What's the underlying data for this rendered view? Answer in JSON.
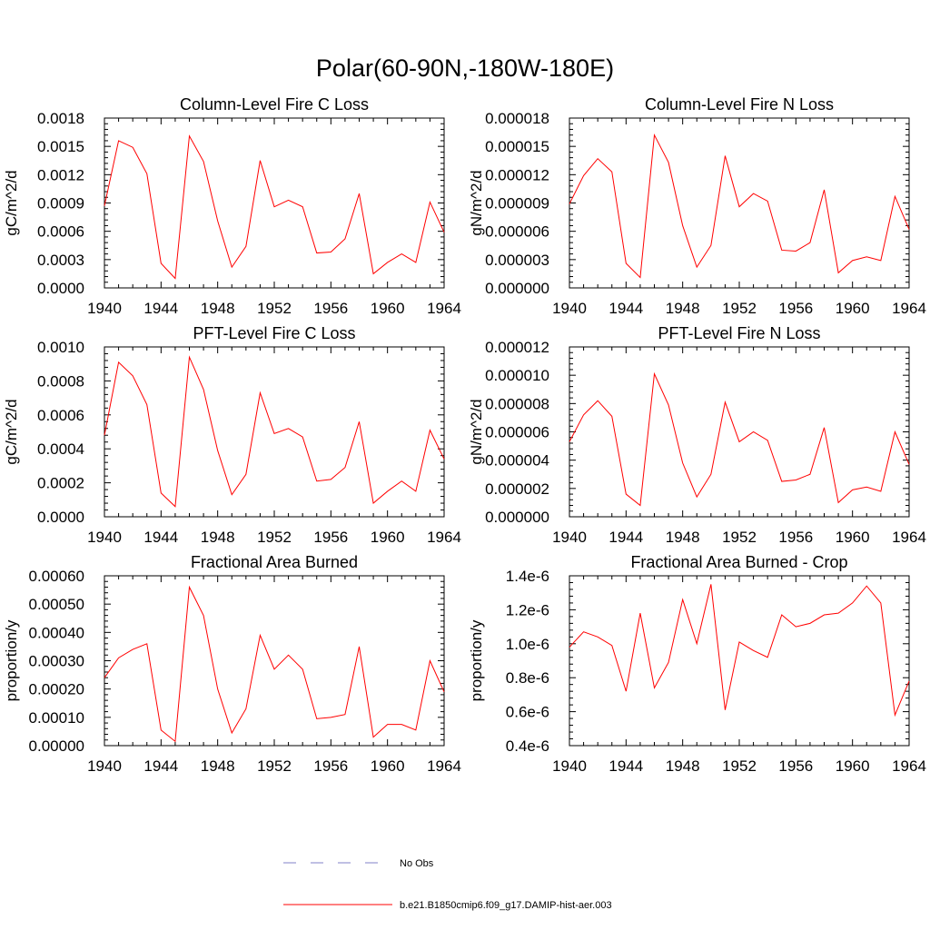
{
  "title": "Polar(60-90N,-180W-180E)",
  "colors": {
    "series": "#ff0000",
    "obs": "#8080c8",
    "axis": "#000000"
  },
  "legend": {
    "position": "bottom",
    "entries": [
      {
        "label": "No Obs",
        "style": "dashed",
        "color": "#8080c8"
      },
      {
        "label": "b.e21.B1850cmip6.f09_g17.DAMIP-hist-aer.003",
        "style": "solid",
        "color": "#ff0000"
      }
    ]
  },
  "chart_data": [
    {
      "type": "line",
      "title": "Column-Level Fire C Loss",
      "xlabel": "",
      "ylabel": "gC/m^2/d",
      "xlim": [
        1940,
        1964
      ],
      "ylim": [
        0,
        0.0018
      ],
      "xticks": [
        "1940",
        "1944",
        "1948",
        "1952",
        "1956",
        "1960",
        "1964"
      ],
      "yticks": [
        "0.0000",
        "0.0003",
        "0.0006",
        "0.0009",
        "0.0012",
        "0.0015",
        "0.0018"
      ],
      "x": [
        1940,
        1941,
        1942,
        1943,
        1944,
        1945,
        1946,
        1947,
        1948,
        1949,
        1950,
        1951,
        1952,
        1953,
        1954,
        1955,
        1956,
        1957,
        1958,
        1959,
        1960,
        1961,
        1962,
        1963,
        1964
      ],
      "series": [
        {
          "values": [
            0.00087,
            0.00156,
            0.00149,
            0.00121,
            0.00026,
            0.0001,
            0.00161,
            0.00134,
            0.00071,
            0.00022,
            0.00044,
            0.00135,
            0.00086,
            0.00093,
            0.00086,
            0.00037,
            0.00038,
            0.00052,
            0.001,
            0.00015,
            0.00027,
            0.00036,
            0.00027,
            0.00091,
            0.00059
          ]
        }
      ]
    },
    {
      "type": "line",
      "title": "Column-Level Fire N Loss",
      "xlabel": "",
      "ylabel": "gN/m^2/d",
      "xlim": [
        1940,
        1964
      ],
      "ylim": [
        0,
        1.8e-05
      ],
      "xticks": [
        "1940",
        "1944",
        "1948",
        "1952",
        "1956",
        "1960",
        "1964"
      ],
      "yticks": [
        "0.000000",
        "0.000003",
        "0.000006",
        "0.000009",
        "0.000012",
        "0.000015",
        "0.000018"
      ],
      "x": [
        1940,
        1941,
        1942,
        1943,
        1944,
        1945,
        1946,
        1947,
        1948,
        1949,
        1950,
        1951,
        1952,
        1953,
        1954,
        1955,
        1956,
        1957,
        1958,
        1959,
        1960,
        1961,
        1962,
        1963,
        1964
      ],
      "series": [
        {
          "values": [
            8.9e-06,
            1.19e-05,
            1.37e-05,
            1.23e-05,
            2.6e-06,
            1.1e-06,
            1.62e-05,
            1.33e-05,
            6.6e-06,
            2.2e-06,
            4.5e-06,
            1.4e-05,
            8.6e-06,
            1e-05,
            9.2e-06,
            4e-06,
            3.9e-06,
            4.8e-06,
            1.04e-05,
            1.6e-06,
            2.9e-06,
            3.3e-06,
            2.9e-06,
            9.7e-06,
            6.2e-06
          ]
        }
      ]
    },
    {
      "type": "line",
      "title": "PFT-Level Fire C Loss",
      "xlabel": "",
      "ylabel": "gC/m^2/d",
      "xlim": [
        1940,
        1964
      ],
      "ylim": [
        0,
        0.001
      ],
      "xticks": [
        "1940",
        "1944",
        "1948",
        "1952",
        "1956",
        "1960",
        "1964"
      ],
      "yticks": [
        "0.0000",
        "0.0002",
        "0.0004",
        "0.0006",
        "0.0008",
        "0.0010"
      ],
      "x": [
        1940,
        1941,
        1942,
        1943,
        1944,
        1945,
        1946,
        1947,
        1948,
        1949,
        1950,
        1951,
        1952,
        1953,
        1954,
        1955,
        1956,
        1957,
        1958,
        1959,
        1960,
        1961,
        1962,
        1963,
        1964
      ],
      "series": [
        {
          "values": [
            0.00048,
            0.00091,
            0.00083,
            0.00066,
            0.00014,
            6e-05,
            0.00094,
            0.00075,
            0.00039,
            0.00013,
            0.00025,
            0.00073,
            0.00049,
            0.00052,
            0.00047,
            0.00021,
            0.00022,
            0.00029,
            0.00056,
            8e-05,
            0.00015,
            0.00021,
            0.00015,
            0.00051,
            0.00034
          ]
        }
      ]
    },
    {
      "type": "line",
      "title": "PFT-Level Fire N Loss",
      "xlabel": "",
      "ylabel": "gN/m^2/d",
      "xlim": [
        1940,
        1964
      ],
      "ylim": [
        0,
        1.2e-05
      ],
      "xticks": [
        "1940",
        "1944",
        "1948",
        "1952",
        "1956",
        "1960",
        "1964"
      ],
      "yticks": [
        "0.000000",
        "0.000002",
        "0.000004",
        "0.000006",
        "0.000008",
        "0.000010",
        "0.000012"
      ],
      "x": [
        1940,
        1941,
        1942,
        1943,
        1944,
        1945,
        1946,
        1947,
        1948,
        1949,
        1950,
        1951,
        1952,
        1953,
        1954,
        1955,
        1956,
        1957,
        1958,
        1959,
        1960,
        1961,
        1962,
        1963,
        1964
      ],
      "series": [
        {
          "values": [
            5.3e-06,
            7.2e-06,
            8.2e-06,
            7.1e-06,
            1.6e-06,
            8e-07,
            1.01e-05,
            7.9e-06,
            3.8e-06,
            1.4e-06,
            3e-06,
            8.1e-06,
            5.3e-06,
            6e-06,
            5.4e-06,
            2.5e-06,
            2.6e-06,
            3e-06,
            6.3e-06,
            1e-06,
            1.9e-06,
            2.1e-06,
            1.8e-06,
            6e-06,
            3.7e-06
          ]
        }
      ]
    },
    {
      "type": "line",
      "title": "Fractional Area Burned",
      "xlabel": "",
      "ylabel": "proportion/y",
      "xlim": [
        1940,
        1964
      ],
      "ylim": [
        0,
        0.0006
      ],
      "xticks": [
        "1940",
        "1944",
        "1948",
        "1952",
        "1956",
        "1960",
        "1964"
      ],
      "yticks": [
        "0.00000",
        "0.00010",
        "0.00020",
        "0.00030",
        "0.00040",
        "0.00050",
        "0.00060"
      ],
      "x": [
        1940,
        1941,
        1942,
        1943,
        1944,
        1945,
        1946,
        1947,
        1948,
        1949,
        1950,
        1951,
        1952,
        1953,
        1954,
        1955,
        1956,
        1957,
        1958,
        1959,
        1960,
        1961,
        1962,
        1963,
        1964
      ],
      "series": [
        {
          "values": [
            0.00024,
            0.00031,
            0.00034,
            0.00036,
            5.5e-05,
            1.5e-05,
            0.00056,
            0.00046,
            0.0002,
            4.5e-05,
            0.00013,
            0.00039,
            0.00027,
            0.00032,
            0.00027,
            9.5e-05,
            0.0001,
            0.00011,
            0.00035,
            3e-05,
            7.5e-05,
            7.5e-05,
            5.5e-05,
            0.0003,
            0.00019
          ]
        }
      ]
    },
    {
      "type": "line",
      "title": "Fractional Area Burned - Crop",
      "xlabel": "",
      "ylabel": "proportion/y",
      "xlim": [
        1940,
        1964
      ],
      "ylim": [
        4e-07,
        1.4e-06
      ],
      "xticks": [
        "1940",
        "1944",
        "1948",
        "1952",
        "1956",
        "1960",
        "1964"
      ],
      "yticks": [
        "0.4e-6",
        "0.6e-6",
        "0.8e-6",
        "1.0e-6",
        "1.2e-6",
        "1.4e-6"
      ],
      "x": [
        1940,
        1941,
        1942,
        1943,
        1944,
        1945,
        1946,
        1947,
        1948,
        1949,
        1950,
        1951,
        1952,
        1953,
        1954,
        1955,
        1956,
        1957,
        1958,
        1959,
        1960,
        1961,
        1962,
        1963,
        1964
      ],
      "series": [
        {
          "values": [
            9.8e-07,
            1.07e-06,
            1.04e-06,
            9.9e-07,
            7.2e-07,
            1.18e-06,
            7.4e-07,
            8.9e-07,
            1.26e-06,
            1e-06,
            1.35e-06,
            6.1e-07,
            1.01e-06,
            9.6e-07,
            9.2e-07,
            1.17e-06,
            1.1e-06,
            1.12e-06,
            1.17e-06,
            1.18e-06,
            1.24e-06,
            1.34e-06,
            1.24e-06,
            5.8e-07,
            7.8e-07
          ]
        }
      ]
    }
  ]
}
